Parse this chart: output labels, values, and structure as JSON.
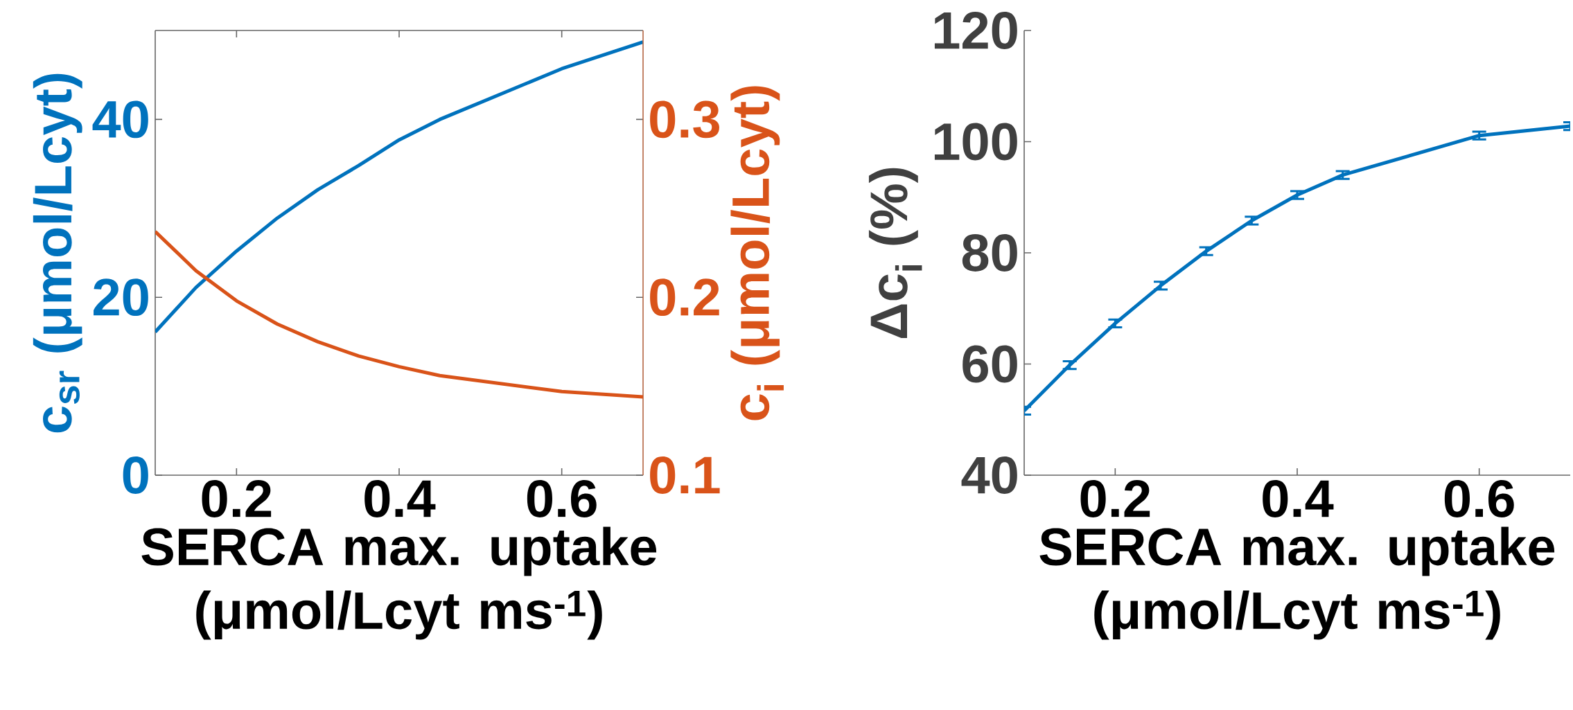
{
  "chart_data": [
    {
      "type": "line",
      "x": [
        0.1,
        0.15,
        0.2,
        0.25,
        0.3,
        0.35,
        0.4,
        0.45,
        0.6,
        0.7
      ],
      "series": [
        {
          "color": "#0072bd",
          "values": [
            16.1,
            21.1,
            25.2,
            28.9,
            32.1,
            34.8,
            37.7,
            40.0,
            45.7,
            48.7
          ]
        },
        {
          "color": "#d95319",
          "axis": "y2",
          "values": [
            0.237,
            0.215,
            0.198,
            0.185,
            0.175,
            0.167,
            0.161,
            0.156,
            0.147,
            0.144
          ]
        }
      ],
      "xlim": [
        0.1,
        0.7
      ],
      "xticks": [
        0.2,
        0.4,
        0.6
      ],
      "ylim": [
        0,
        50
      ],
      "yticks": [
        0,
        20,
        40
      ],
      "y2lim": [
        0.1,
        0.35
      ],
      "y2ticks": [
        0.1,
        0.2,
        0.3
      ],
      "xlabel": "SERCA max. uptake (μmol/Lcyt ms$^{-1}$)",
      "ylabel": "c$_{sr}$ (μmol/Lcyt)",
      "y2label": "c$_{i}$ (μmol/Lcyt)"
    },
    {
      "type": "line",
      "x": [
        0.1,
        0.15,
        0.2,
        0.25,
        0.3,
        0.35,
        0.4,
        0.45,
        0.6,
        0.7
      ],
      "color": "#0072bd",
      "values": [
        51.6,
        59.8,
        67.3,
        74.1,
        80.3,
        85.8,
        90.4,
        94.0,
        101.1,
        102.8
      ],
      "errors": [
        0.7,
        0.7,
        0.7,
        0.7,
        0.7,
        0.7,
        0.7,
        0.7,
        0.7,
        0.7
      ],
      "xlim": [
        0.1,
        0.7
      ],
      "xticks": [
        0.2,
        0.4,
        0.6
      ],
      "ylim": [
        40,
        120
      ],
      "yticks": [
        40,
        60,
        80,
        100,
        120
      ],
      "xlabel": "SERCA max. uptake (μmol/Lcyt ms$^{-1}$)",
      "ylabel": "Δc$_{i}$ (%)"
    }
  ]
}
